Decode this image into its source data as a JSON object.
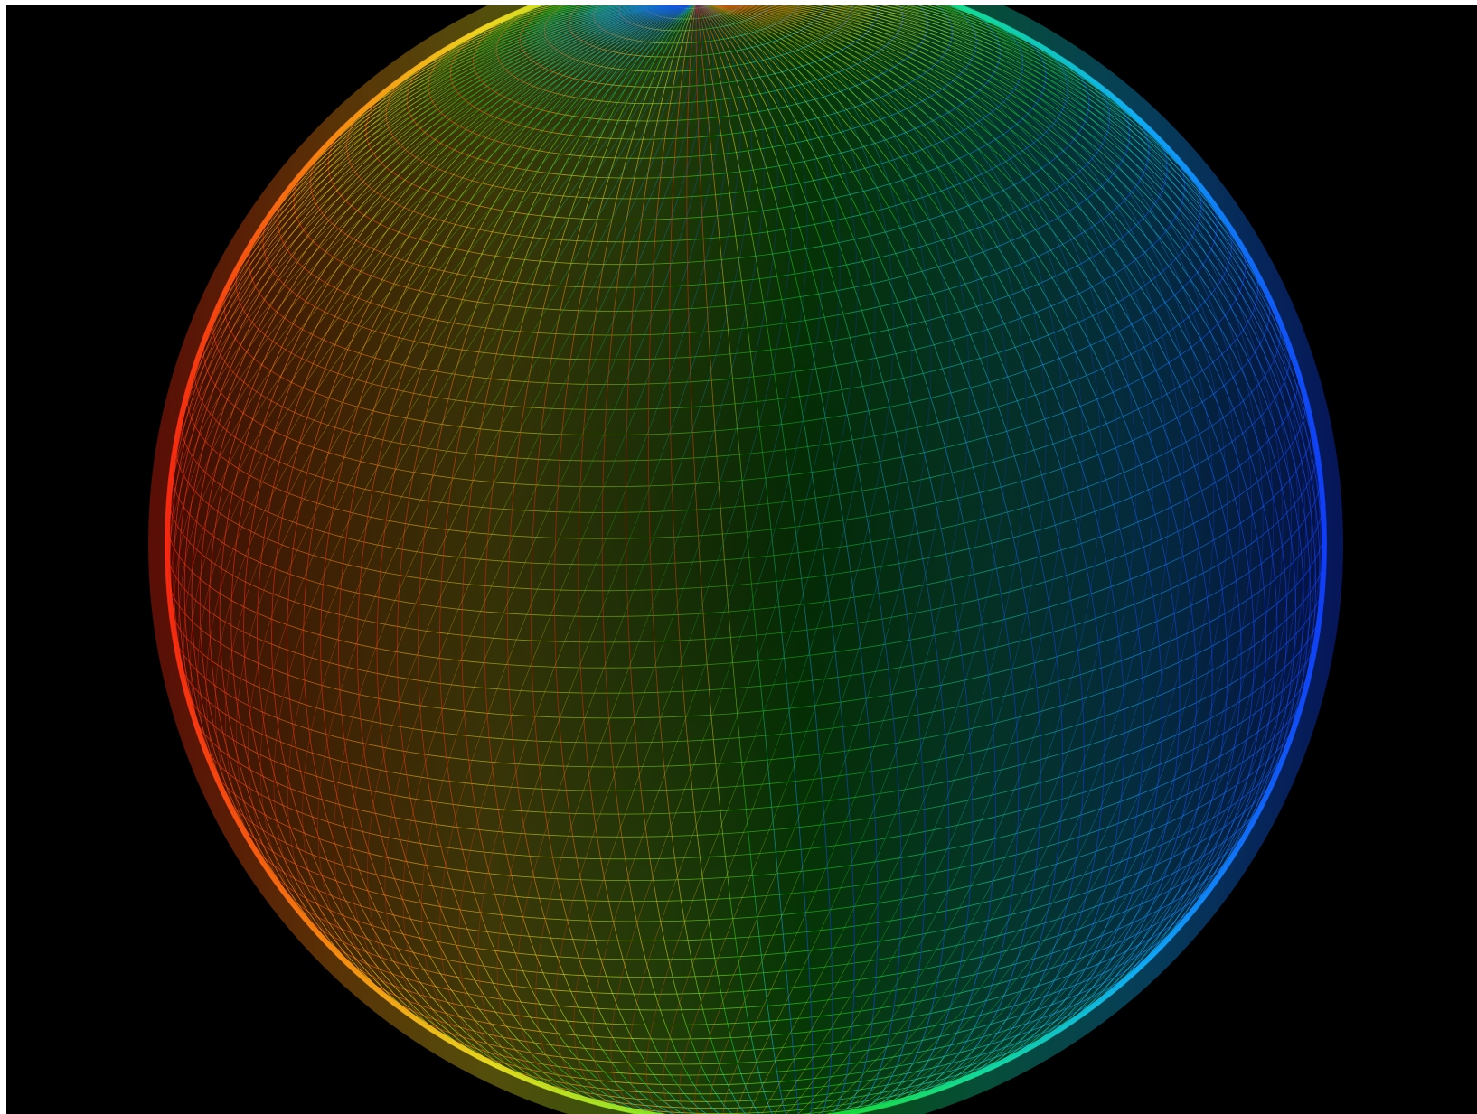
{
  "scene": {
    "subject": "sphere-mesh",
    "background_color": "#000000",
    "color_ramp": [
      "#ff2a10",
      "#ff8a10",
      "#f2e020",
      "#8cf020",
      "#18e018",
      "#10e0a0",
      "#10b0ff",
      "#1040ff"
    ]
  }
}
